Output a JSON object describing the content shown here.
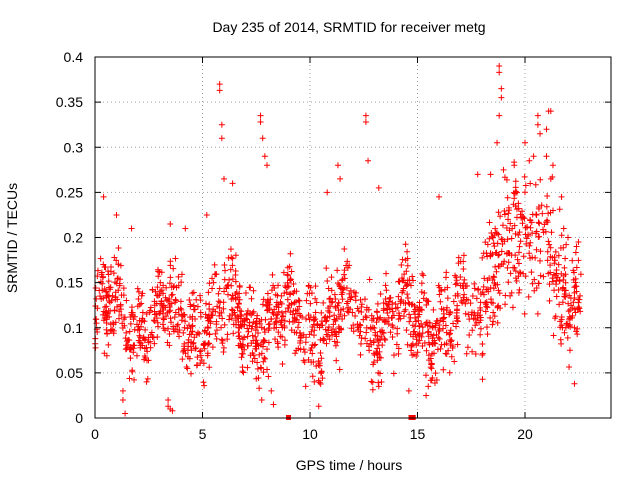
{
  "chart_data": {
    "type": "scatter",
    "title": "Day 235 of 2014, SRMTID for receiver metg",
    "xlabel": "GPS time / hours",
    "ylabel": "SRMTID / TECUs",
    "xlim": [
      0,
      24
    ],
    "ylim": [
      0,
      0.4
    ],
    "xticks": [
      0,
      5,
      10,
      15,
      20
    ],
    "yticks": [
      0,
      0.05,
      0.1,
      0.15,
      0.2,
      0.25,
      0.3,
      0.35,
      0.4
    ],
    "xtick_labels": [
      "0",
      "5",
      "10",
      "15",
      "20"
    ],
    "ytick_labels": [
      "0",
      "0.05",
      "0.1",
      "0.15",
      "0.2",
      "0.25",
      "0.3",
      "0.35",
      "0.4"
    ],
    "grid": true,
    "marker": "+",
    "color": "#ff0000",
    "x_coverage": [
      0,
      22.6
    ],
    "baseline_level": 0.11,
    "baseline_spread": 0.04,
    "elevated_period": [
      18,
      22,
      0.2
    ],
    "peaks": [
      {
        "x": 0.4,
        "y": 0.245
      },
      {
        "x": 1.0,
        "y": 0.225
      },
      {
        "x": 1.7,
        "y": 0.21
      },
      {
        "x": 3.5,
        "y": 0.215
      },
      {
        "x": 4.2,
        "y": 0.21
      },
      {
        "x": 5.2,
        "y": 0.225
      },
      {
        "x": 5.8,
        "y": 0.37
      },
      {
        "x": 5.8,
        "y": 0.363
      },
      {
        "x": 5.9,
        "y": 0.325
      },
      {
        "x": 5.9,
        "y": 0.31
      },
      {
        "x": 6.0,
        "y": 0.265
      },
      {
        "x": 6.4,
        "y": 0.26
      },
      {
        "x": 7.7,
        "y": 0.335
      },
      {
        "x": 7.7,
        "y": 0.328
      },
      {
        "x": 7.8,
        "y": 0.31
      },
      {
        "x": 7.9,
        "y": 0.29
      },
      {
        "x": 8.0,
        "y": 0.28
      },
      {
        "x": 10.8,
        "y": 0.25
      },
      {
        "x": 11.3,
        "y": 0.28
      },
      {
        "x": 11.4,
        "y": 0.265
      },
      {
        "x": 12.6,
        "y": 0.335
      },
      {
        "x": 12.6,
        "y": 0.328
      },
      {
        "x": 12.7,
        "y": 0.285
      },
      {
        "x": 13.2,
        "y": 0.255
      },
      {
        "x": 16.0,
        "y": 0.245
      },
      {
        "x": 17.8,
        "y": 0.27
      },
      {
        "x": 18.4,
        "y": 0.27
      },
      {
        "x": 18.8,
        "y": 0.39
      },
      {
        "x": 18.8,
        "y": 0.383
      },
      {
        "x": 18.9,
        "y": 0.365
      },
      {
        "x": 18.9,
        "y": 0.355
      },
      {
        "x": 18.8,
        "y": 0.335
      },
      {
        "x": 18.7,
        "y": 0.305
      },
      {
        "x": 19.0,
        "y": 0.275
      },
      {
        "x": 19.5,
        "y": 0.28
      },
      {
        "x": 20.0,
        "y": 0.305
      },
      {
        "x": 20.2,
        "y": 0.285
      },
      {
        "x": 20.4,
        "y": 0.29
      },
      {
        "x": 20.6,
        "y": 0.335
      },
      {
        "x": 20.6,
        "y": 0.325
      },
      {
        "x": 20.7,
        "y": 0.315
      },
      {
        "x": 21.0,
        "y": 0.32
      },
      {
        "x": 21.1,
        "y": 0.34
      },
      {
        "x": 21.2,
        "y": 0.34
      },
      {
        "x": 21.0,
        "y": 0.29
      },
      {
        "x": 21.3,
        "y": 0.28
      },
      {
        "x": 21.2,
        "y": 0.265
      },
      {
        "x": 21.7,
        "y": 0.245
      },
      {
        "x": 21.8,
        "y": 0.21
      },
      {
        "x": 22.0,
        "y": 0.2
      }
    ],
    "troughs": [
      {
        "x": 1.3,
        "y": 0.03
      },
      {
        "x": 1.3,
        "y": 0.02
      },
      {
        "x": 1.4,
        "y": 0.005
      },
      {
        "x": 2.4,
        "y": 0.04
      },
      {
        "x": 3.4,
        "y": 0.02
      },
      {
        "x": 3.4,
        "y": 0.013
      },
      {
        "x": 3.5,
        "y": 0.01
      },
      {
        "x": 3.6,
        "y": 0.008
      },
      {
        "x": 8.3,
        "y": 0.015
      },
      {
        "x": 8.2,
        "y": 0.03
      },
      {
        "x": 9.8,
        "y": 0.035
      },
      {
        "x": 10.2,
        "y": 0.04
      },
      {
        "x": 13.2,
        "y": 0.035
      },
      {
        "x": 14.6,
        "y": 0.03
      },
      {
        "x": 15.4,
        "y": 0.025
      },
      {
        "x": 15.5,
        "y": 0.035
      },
      {
        "x": 22.3,
        "y": 0.038
      }
    ],
    "zero_points": [
      {
        "x": 9.0,
        "y": 0.0
      },
      {
        "x": 14.7,
        "y": 0.0
      },
      {
        "x": 14.8,
        "y": 0.0
      }
    ]
  }
}
